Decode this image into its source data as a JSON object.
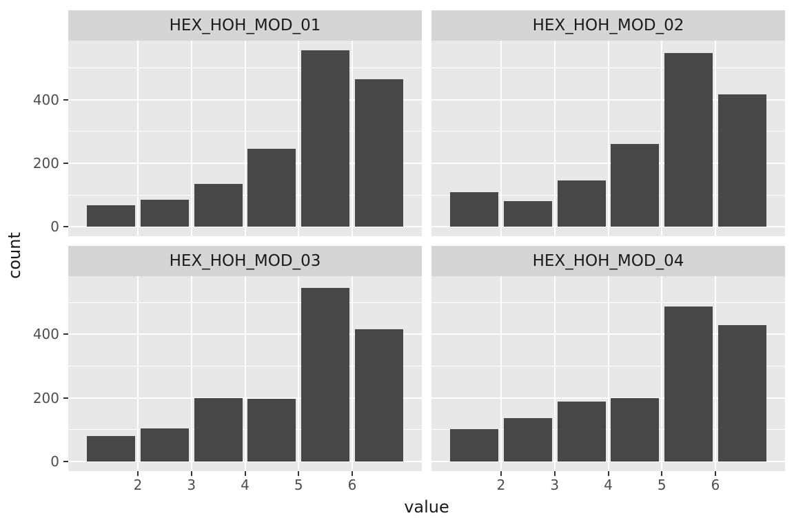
{
  "figure": {
    "xlabel": "value",
    "ylabel": "count"
  },
  "colors": {
    "bar": "#474747",
    "panel_bg": "#E8E8E8",
    "strip_bg": "#D5D5D5",
    "grid": "#FFFFFF",
    "axis_text": "#4D4D4D",
    "title_text": "#1A1A1A",
    "tick_mark": "#333333"
  },
  "chart_data": {
    "type": "bar",
    "subtype": "faceted-histogram",
    "facets": [
      {
        "title": "HEX_HOH_MOD_01",
        "values": [
          67,
          85,
          136,
          246,
          555,
          464
        ]
      },
      {
        "title": "HEX_HOH_MOD_02",
        "values": [
          109,
          80,
          146,
          261,
          547,
          417
        ]
      },
      {
        "title": "HEX_HOH_MOD_03",
        "values": [
          80,
          105,
          200,
          198,
          545,
          417
        ]
      },
      {
        "title": "HEX_HOH_MOD_04",
        "values": [
          101,
          137,
          188,
          200,
          487,
          428
        ]
      }
    ],
    "bin_centers": [
      1.5,
      2.5,
      3.5,
      4.5,
      5.5,
      6.5
    ],
    "bin_width": 1,
    "bar_width_fraction": 0.9,
    "x_ticks": [
      2,
      3,
      4,
      5,
      6
    ],
    "y_ticks": [
      0,
      200,
      400
    ],
    "y_minor_ticks": [
      100,
      300,
      500
    ],
    "xlim": [
      0.7,
      7.3
    ],
    "ylim": [
      -29,
      585
    ],
    "xlabel": "value",
    "ylabel": "count",
    "grid": true,
    "legend": "none"
  }
}
